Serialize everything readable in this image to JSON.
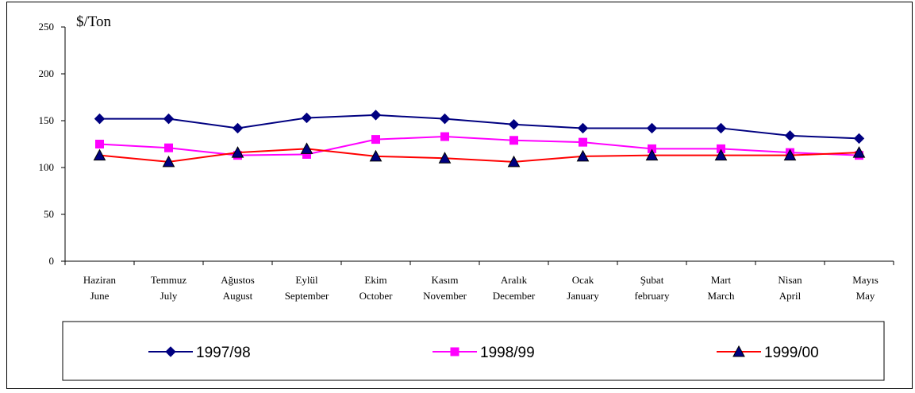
{
  "chart_data": {
    "type": "line",
    "ylabel": "$/Ton",
    "ylim": [
      0,
      250
    ],
    "yticks": [
      0,
      50,
      100,
      150,
      200,
      250
    ],
    "grid": false,
    "legend_position": "bottom",
    "categories": [
      [
        "Haziran",
        "June"
      ],
      [
        "Temmuz",
        "July"
      ],
      [
        "Ağustos",
        "August"
      ],
      [
        "Eylül",
        "September"
      ],
      [
        "Ekim",
        "October"
      ],
      [
        "Kasım",
        "November"
      ],
      [
        "Aralık",
        "December"
      ],
      [
        "Ocak",
        "January"
      ],
      [
        "Şubat",
        "february"
      ],
      [
        "Mart",
        "March"
      ],
      [
        "Nisan",
        "April"
      ],
      [
        "Mayıs",
        "May"
      ]
    ],
    "series": [
      {
        "name": "1997/98",
        "color": "#000080",
        "marker": "diamond",
        "values": [
          152,
          152,
          142,
          153,
          156,
          152,
          146,
          142,
          142,
          142,
          134,
          131
        ]
      },
      {
        "name": "1998/99",
        "color": "#ff00ff",
        "marker": "square",
        "values": [
          125,
          121,
          113,
          114,
          130,
          133,
          129,
          127,
          120,
          120,
          116,
          113
        ]
      },
      {
        "name": "1999/00",
        "color": "#ff0000",
        "marker": "triangle",
        "values": [
          113,
          106,
          116,
          120,
          112,
          110,
          106,
          112,
          113,
          113,
          113,
          116
        ]
      }
    ]
  }
}
